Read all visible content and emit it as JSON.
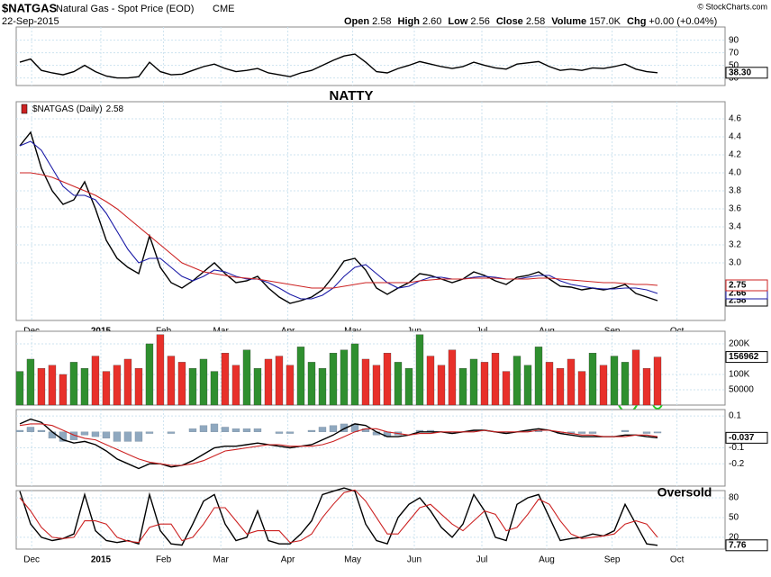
{
  "header": {
    "symbol": "$NATGAS",
    "name": "Natural Gas - Spot Price (EOD)",
    "exchange": "CME",
    "date": "22-Sep-2015",
    "quote": [
      {
        "label": "Open",
        "value": "2.58"
      },
      {
        "label": "High",
        "value": "2.60"
      },
      {
        "label": "Low",
        "value": "2.56"
      },
      {
        "label": "Close",
        "value": "2.58"
      },
      {
        "label": "Volume",
        "value": "157.0K"
      },
      {
        "label": "Chg",
        "value": "+0.00 (+0.04%)"
      }
    ],
    "credit": "© StockCharts.com"
  },
  "chart_data": [
    {
      "type": "line",
      "ylim": [
        18,
        111
      ],
      "yticks": [
        90,
        70,
        50,
        30
      ],
      "grid": true,
      "series": [
        {
          "color": "#000000",
          "last_label": true,
          "values": [
            55,
            60,
            42,
            38,
            35,
            40,
            50,
            40,
            33,
            30,
            30,
            32,
            55,
            40,
            35,
            36,
            42,
            48,
            52,
            45,
            40,
            42,
            45,
            38,
            35,
            32,
            38,
            42,
            50,
            58,
            65,
            68,
            55,
            40,
            38,
            45,
            50,
            56,
            52,
            48,
            45,
            48,
            55,
            50,
            46,
            44,
            52,
            54,
            56,
            48,
            42,
            44,
            42,
            46,
            45,
            48,
            52,
            44,
            40,
            38.3
          ],
          "value_labels": [
            null,
            null,
            null,
            null,
            null,
            null,
            null,
            null,
            null,
            null,
            null,
            null,
            null,
            null,
            null,
            null,
            null,
            null,
            null,
            null,
            null,
            null,
            null,
            null,
            null,
            null,
            null,
            null,
            null,
            null,
            null,
            null,
            null,
            null,
            null,
            null,
            null,
            null,
            null,
            null,
            null,
            null,
            null,
            null,
            null,
            null,
            null,
            null,
            null,
            null,
            null,
            null,
            null,
            null,
            null,
            null,
            null,
            null,
            null,
            "38.30"
          ]
        }
      ]
    },
    {
      "type": "line",
      "title": "NATTY",
      "ylim": [
        2.36,
        4.79
      ],
      "yticks": [
        4.6,
        4.4,
        4.2,
        {
          "value": 4,
          "label": "4.0"
        },
        3.8,
        3.6,
        3.4,
        3.2,
        {
          "value": 3,
          "label": "3.0"
        }
      ],
      "xlim": [
        -0.33,
        65.25
      ],
      "xticks": [
        {
          "value": 1.1,
          "label": "Dec"
        },
        {
          "value": 7.5,
          "label": "2015"
        },
        {
          "value": 13.3,
          "label": "Feb"
        },
        {
          "value": 18.6,
          "label": "Mar"
        },
        {
          "value": 24.8,
          "label": "Apr"
        },
        {
          "value": 30.8,
          "label": "May"
        },
        {
          "value": 36.5,
          "label": "Jun"
        },
        {
          "value": 42.75,
          "label": "Jul"
        },
        {
          "value": 48.75,
          "label": "Aug"
        },
        {
          "value": 54.8,
          "label": "Sep"
        },
        {
          "value": 60.8,
          "label": "Oct"
        }
      ],
      "grid": true,
      "series": [
        {
          "name": "$NATGAS (Daily)",
          "color": "#000000",
          "last_label": true,
          "values": [
            4.3,
            4.45,
            4.05,
            3.8,
            3.65,
            3.7,
            3.9,
            3.6,
            3.25,
            3.05,
            2.95,
            2.88,
            3.3,
            2.95,
            2.78,
            2.72,
            2.8,
            2.9,
            3.0,
            2.88,
            2.78,
            2.8,
            2.85,
            2.72,
            2.62,
            2.55,
            2.58,
            2.62,
            2.7,
            2.85,
            3.02,
            3.05,
            2.92,
            2.72,
            2.65,
            2.72,
            2.78,
            2.88,
            2.86,
            2.82,
            2.78,
            2.82,
            2.9,
            2.86,
            2.8,
            2.76,
            2.84,
            2.86,
            2.9,
            2.82,
            2.74,
            2.73,
            2.7,
            2.72,
            2.7,
            2.72,
            2.76,
            2.66,
            2.62,
            2.58
          ]
        },
        {
          "color": "#1a1aa6",
          "last_label": true,
          "values": [
            4.3,
            4.35,
            4.25,
            4.05,
            3.85,
            3.75,
            3.75,
            3.7,
            3.55,
            3.35,
            3.15,
            3.0,
            3.05,
            3.05,
            2.95,
            2.85,
            2.8,
            2.85,
            2.92,
            2.9,
            2.85,
            2.82,
            2.82,
            2.78,
            2.72,
            2.65,
            2.6,
            2.6,
            2.64,
            2.72,
            2.85,
            2.95,
            2.98,
            2.88,
            2.78,
            2.72,
            2.74,
            2.8,
            2.84,
            2.84,
            2.82,
            2.82,
            2.84,
            2.85,
            2.84,
            2.82,
            2.82,
            2.84,
            2.86,
            2.86,
            2.8,
            2.76,
            2.74,
            2.72,
            2.71,
            2.71,
            2.72,
            2.72,
            2.7,
            2.66
          ]
        },
        {
          "color": "#cc2222",
          "last_label": true,
          "values": [
            4.0,
            4.0,
            3.98,
            3.95,
            3.9,
            3.85,
            3.8,
            3.75,
            3.68,
            3.6,
            3.5,
            3.4,
            3.3,
            3.2,
            3.1,
            3.0,
            2.95,
            2.9,
            2.88,
            2.86,
            2.84,
            2.83,
            2.82,
            2.8,
            2.78,
            2.76,
            2.74,
            2.72,
            2.72,
            2.72,
            2.74,
            2.76,
            2.78,
            2.78,
            2.78,
            2.78,
            2.78,
            2.8,
            2.81,
            2.82,
            2.82,
            2.82,
            2.83,
            2.83,
            2.83,
            2.82,
            2.82,
            2.82,
            2.83,
            2.83,
            2.82,
            2.81,
            2.8,
            2.79,
            2.78,
            2.78,
            2.77,
            2.76,
            2.76,
            2.75
          ]
        }
      ]
    },
    {
      "type": "bar",
      "ylim": [
        0,
        241000
      ],
      "yticks": [
        {
          "value": 200000,
          "label": "200K"
        },
        {
          "value": 100000,
          "label": "100K"
        },
        50000
      ],
      "grid": true,
      "up_color": "#2f8f2f",
      "down_color": "#e8302a",
      "last_label": true,
      "values": [
        110000,
        150000,
        120000,
        130000,
        100000,
        140000,
        120000,
        160000,
        110000,
        130000,
        150000,
        120000,
        200000,
        230000,
        160000,
        140000,
        120000,
        150000,
        110000,
        170000,
        130000,
        180000,
        120000,
        150000,
        160000,
        130000,
        190000,
        140000,
        120000,
        170000,
        180000,
        200000,
        150000,
        130000,
        170000,
        140000,
        120000,
        230000,
        160000,
        130000,
        180000,
        120000,
        150000,
        140000,
        170000,
        110000,
        160000,
        130000,
        190000,
        140000,
        120000,
        150000,
        110000,
        170000,
        130000,
        160000,
        140000,
        180000,
        120000,
        156962
      ]
    },
    {
      "type": "macd",
      "ylim": [
        -0.34,
        0.14
      ],
      "yticks": [
        0.1,
        -0.1,
        -0.2
      ],
      "grid": true,
      "histogram_color": "#8fa8bf",
      "series": [
        {
          "color": "#000000",
          "last_label": true,
          "values": [
            0.05,
            0.08,
            0.06,
            0.0,
            -0.05,
            -0.07,
            -0.06,
            -0.08,
            -0.12,
            -0.17,
            -0.2,
            -0.23,
            -0.2,
            -0.2,
            -0.22,
            -0.21,
            -0.18,
            -0.14,
            -0.1,
            -0.09,
            -0.09,
            -0.08,
            -0.07,
            -0.08,
            -0.09,
            -0.1,
            -0.09,
            -0.08,
            -0.05,
            -0.02,
            0.02,
            0.05,
            0.04,
            0.0,
            -0.03,
            -0.03,
            -0.02,
            0.0,
            0.0,
            0.0,
            -0.01,
            0.0,
            0.01,
            0.01,
            0.0,
            -0.01,
            0.0,
            0.01,
            0.02,
            0.01,
            -0.01,
            -0.02,
            -0.03,
            -0.03,
            -0.03,
            -0.03,
            -0.02,
            -0.02,
            -0.03,
            -0.037
          ]
        },
        {
          "color": "#cc2222",
          "values": [
            0.04,
            0.05,
            0.05,
            0.04,
            0.01,
            -0.02,
            -0.04,
            -0.05,
            -0.08,
            -0.11,
            -0.14,
            -0.17,
            -0.19,
            -0.2,
            -0.21,
            -0.21,
            -0.2,
            -0.18,
            -0.15,
            -0.12,
            -0.11,
            -0.1,
            -0.09,
            -0.08,
            -0.08,
            -0.09,
            -0.09,
            -0.09,
            -0.08,
            -0.06,
            -0.03,
            0.0,
            0.02,
            0.02,
            0.0,
            -0.01,
            -0.02,
            -0.01,
            -0.01,
            0.0,
            0.0,
            0.0,
            0.0,
            0.01,
            0.0,
            0.0,
            0.0,
            0.0,
            0.01,
            0.01,
            0.0,
            -0.01,
            -0.02,
            -0.02,
            -0.03,
            -0.03,
            -0.03,
            -0.02,
            -0.02,
            -0.03
          ]
        }
      ]
    },
    {
      "type": "line",
      "annotation": "Oversold",
      "ylim": [
        2,
        91
      ],
      "yticks": [
        80,
        50,
        20
      ],
      "grid": true,
      "xlim": [
        -0.33,
        65.25
      ],
      "xticks": [
        {
          "value": 1.1,
          "label": "Dec"
        },
        {
          "value": 7.5,
          "label": "2015"
        },
        {
          "value": 13.3,
          "label": "Feb"
        },
        {
          "value": 18.6,
          "label": "Mar"
        },
        {
          "value": 24.8,
          "label": "Apr"
        },
        {
          "value": 30.8,
          "label": "May"
        },
        {
          "value": 36.5,
          "label": "Jun"
        },
        {
          "value": 42.75,
          "label": "Jul"
        },
        {
          "value": 48.75,
          "label": "Aug"
        },
        {
          "value": 54.8,
          "label": "Sep"
        },
        {
          "value": 60.8,
          "label": "Oct"
        }
      ],
      "series": [
        {
          "color": "#000000",
          "last_label": true,
          "values": [
            90,
            40,
            20,
            15,
            18,
            25,
            85,
            30,
            15,
            12,
            15,
            10,
            85,
            30,
            10,
            8,
            40,
            75,
            85,
            40,
            15,
            20,
            60,
            15,
            10,
            10,
            25,
            45,
            85,
            90,
            95,
            90,
            40,
            15,
            10,
            50,
            70,
            80,
            60,
            35,
            20,
            40,
            85,
            60,
            20,
            15,
            70,
            80,
            85,
            50,
            15,
            18,
            20,
            25,
            22,
            30,
            70,
            40,
            10,
            7.76
          ]
        },
        {
          "color": "#cc2222",
          "values": [
            80,
            60,
            35,
            20,
            18,
            20,
            45,
            45,
            40,
            20,
            14,
            12,
            35,
            40,
            40,
            15,
            20,
            40,
            65,
            65,
            45,
            25,
            30,
            30,
            30,
            12,
            15,
            25,
            50,
            70,
            88,
            92,
            75,
            50,
            25,
            25,
            45,
            65,
            70,
            55,
            40,
            30,
            45,
            60,
            55,
            30,
            35,
            55,
            78,
            70,
            45,
            25,
            18,
            20,
            22,
            25,
            40,
            45,
            40,
            20
          ]
        }
      ]
    }
  ]
}
